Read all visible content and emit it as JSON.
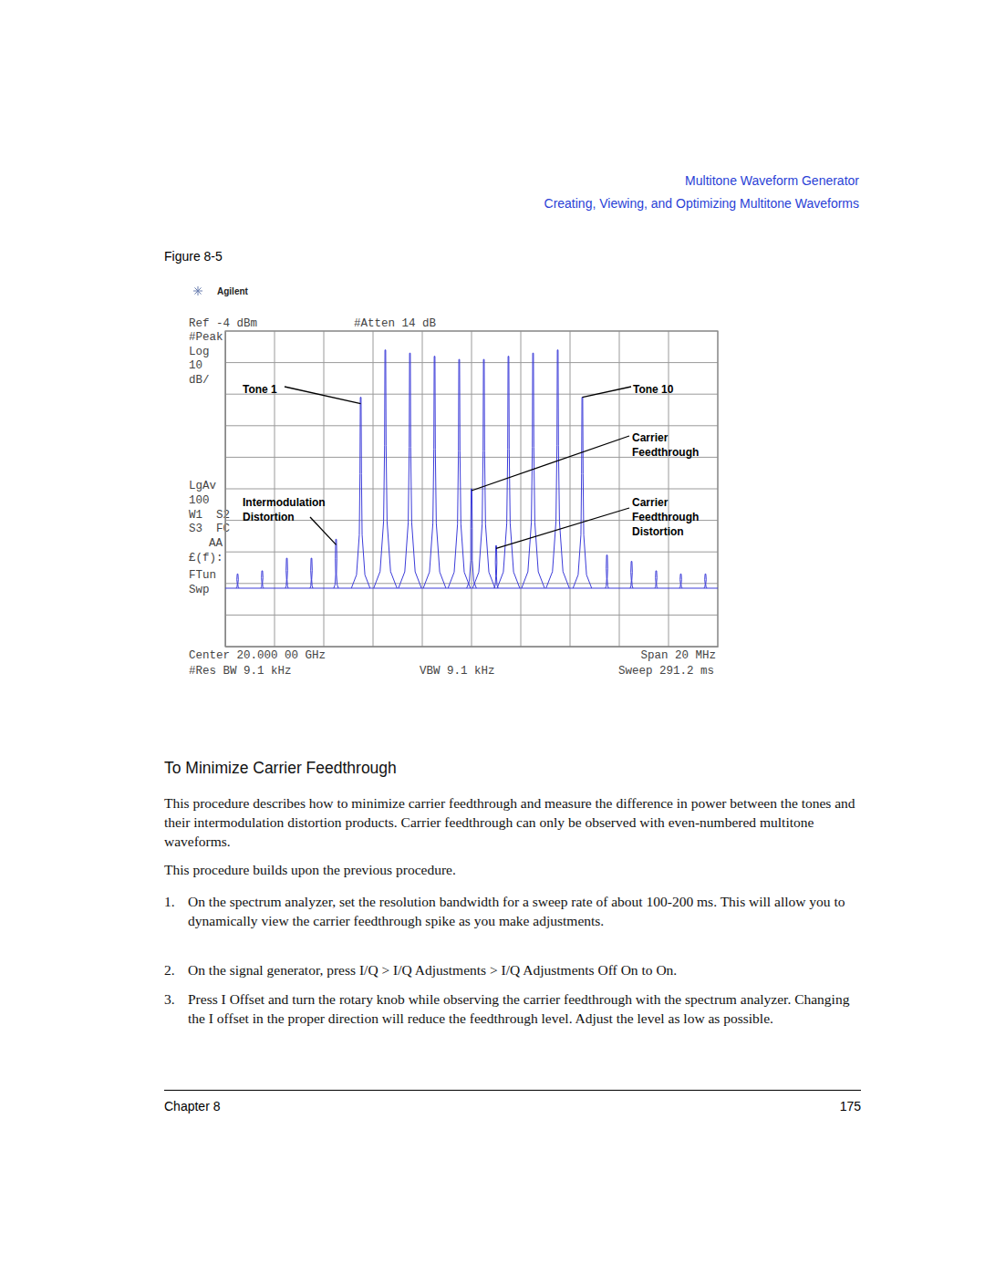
{
  "header": {
    "section": "Multitone Waveform Generator",
    "subsection": "Creating, Viewing, and Optimizing Multitone Waveforms"
  },
  "figure": {
    "label": "Figure 8-5",
    "logo": "Agilent",
    "screen_left": [
      "Ref -4 dBm",
      "#Peak",
      "Log",
      "10",
      "dB/",
      "LgAv",
      "100",
      "W1  S2",
      "S3  FC",
      "AA",
      "£(f):",
      "FTun",
      "Swp"
    ],
    "atten": "#Atten 14 dB",
    "center": "Center 20.000 00 GHz",
    "res_bw": "#Res BW 9.1 kHz",
    "vbw": "VBW 9.1 kHz",
    "span": "Span 20 MHz",
    "sweep": "Sweep 291.2 ms",
    "annotations": [
      [
        "Tone 1"
      ],
      [
        "Tone 10"
      ],
      [
        "Carrier",
        "Feedthrough"
      ],
      [
        "Intermodulation",
        "Distortion"
      ],
      [
        "Carrier",
        "Feedthrough",
        "Distortion"
      ]
    ]
  },
  "chart_data": {
    "type": "spectrum",
    "xlim": [
      19.99,
      20.01
    ],
    "ylim": [
      -104,
      -4
    ],
    "xticks": [
      19.99,
      19.992,
      19.994,
      19.996,
      19.998,
      20.0,
      20.002,
      20.004,
      20.006,
      20.008,
      20.01
    ],
    "yticks": [
      -104,
      -94,
      -84,
      -74,
      -64,
      -54,
      -44,
      -34,
      -24,
      -14,
      -4
    ],
    "tick_labels": false,
    "grid": true,
    "noise_floor": -85.5,
    "series": [
      {
        "color": "#3b3bd9",
        "x": [
          19.9905,
          19.9915,
          19.9925,
          19.9935,
          19.9945,
          19.9955,
          19.9965,
          19.9975,
          19.9985,
          19.9995,
          20.0,
          20.0005,
          20.001,
          20.0015,
          20.0025,
          20.0035,
          20.0045,
          20.0055,
          20.0065,
          20.0075,
          20.0085,
          20.0095
        ],
        "values": [
          -81,
          -80,
          -76,
          -76,
          -70,
          -25,
          -10,
          -11,
          -12,
          -13,
          -54,
          -13,
          -72,
          -12,
          -11,
          -10,
          -25,
          -75,
          -77,
          -80,
          -81,
          -81
        ]
      }
    ]
  },
  "section": {
    "heading": "To Minimize Carrier Feedthrough",
    "paragraphs": [
      "This procedure describes how to minimize carrier feedthrough and measure the difference in power between the tones and their intermodulation distortion products. Carrier feedthrough can only be observed with even-numbered multitone waveforms.",
      "This procedure builds upon the previous procedure."
    ],
    "steps": [
      {
        "number": "1.",
        "text": "On the spectrum analyzer, set the resolution bandwidth for a sweep rate of about 100-200 ms. This will allow you to dynamically view the carrier feedthrough spike as you make adjustments."
      },
      {
        "number": "2.",
        "text": "On the signal generator, press I/Q > I/Q Adjustments > I/Q Adjustments Off On to On."
      },
      {
        "number": "3.",
        "text": "Press I Offset and turn the rotary knob while observing the carrier feedthrough with the spectrum analyzer. Changing the I offset in the proper direction will reduce the feedthrough level. Adjust the level as low as possible."
      }
    ]
  },
  "footer": {
    "chapter": "Chapter 8",
    "page": "175"
  }
}
